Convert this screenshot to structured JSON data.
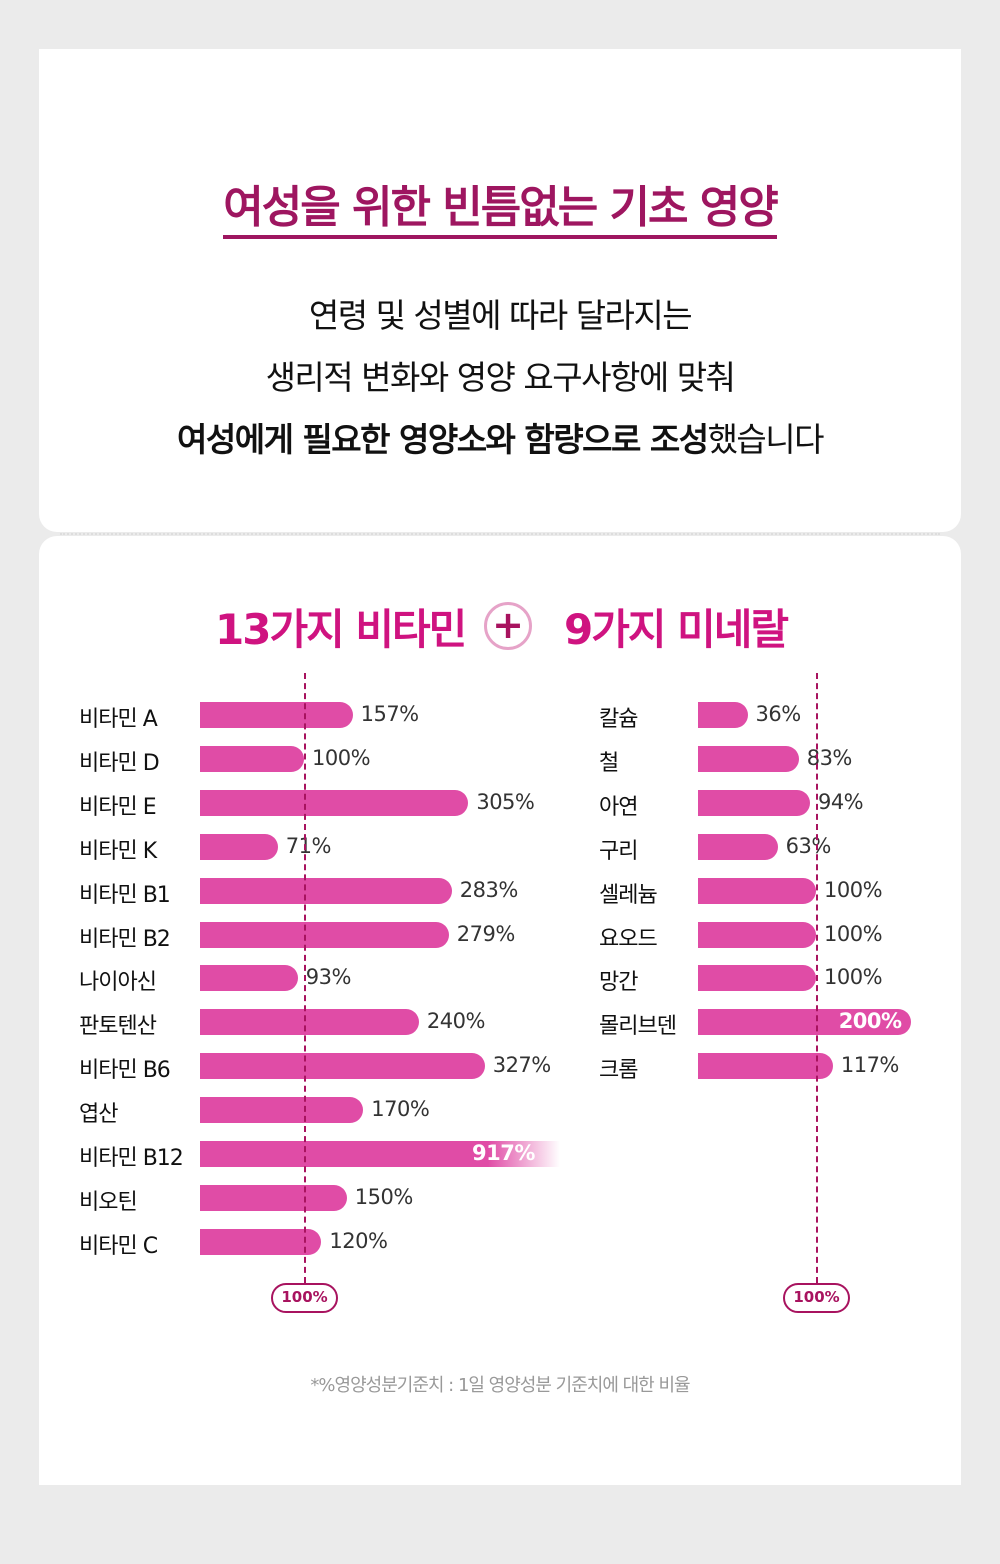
{
  "intro": {
    "title": "여성을 위한 빈틈없는 기초 영양",
    "lines": [
      "연령 및 성별에 따라 달라지는",
      "생리적 변화와 영양 요구사항에 맞춰"
    ],
    "line3_bold": "여성에게 필요한 영양소와 함량으로 조성",
    "line3_rest": "했습니다"
  },
  "chart_data": [
    {
      "type": "bar",
      "orientation": "horizontal",
      "title": "13가지 비타민",
      "reference_line": 100,
      "reference_label": "100%",
      "bar_color": "#e04ca6",
      "categories": [
        "비타민 A",
        "비타민 D",
        "비타민 E",
        "비타민 K",
        "비타민 B1",
        "비타민 B2",
        "나이아신",
        "판토텐산",
        "비타민 B6",
        "엽산",
        "비타민 B12",
        "비오틴",
        "비타민 C"
      ],
      "values": [
        157,
        100,
        305,
        71,
        283,
        279,
        93,
        240,
        327,
        170,
        917,
        150,
        120
      ],
      "labels": [
        "157%",
        "100%",
        "305%",
        "71%",
        "283%",
        "279%",
        "93%",
        "240%",
        "327%",
        "170%",
        "917%",
        "150%",
        "120%"
      ]
    },
    {
      "type": "bar",
      "orientation": "horizontal",
      "title": "9가지 미네랄",
      "reference_line": 100,
      "reference_label": "100%",
      "bar_color": "#e04ca6",
      "categories": [
        "칼슘",
        "철",
        "아연",
        "구리",
        "셀레늄",
        "요오드",
        "망간",
        "몰리브덴",
        "크롬"
      ],
      "values": [
        36,
        83,
        94,
        63,
        100,
        100,
        100,
        200,
        117
      ],
      "labels": [
        "36%",
        "83%",
        "94%",
        "63%",
        "100%",
        "100%",
        "100%",
        "200%",
        "117%"
      ]
    }
  ],
  "plus_icon": "plus-circle-icon",
  "footnote": "*%영양성분기준치 : 1일 영양성분 기준치에 대한 비율"
}
